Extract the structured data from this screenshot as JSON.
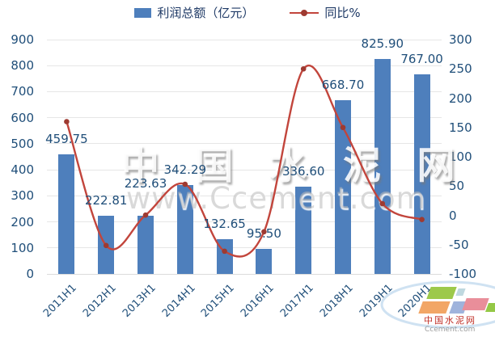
{
  "legend": {
    "bar_label": "利润总额（亿元）",
    "line_label": "同比%"
  },
  "watermark": {
    "line1": "中 国 水 泥 网",
    "line2": "www.Ccement.com"
  },
  "logo": {
    "name": "中国水泥网",
    "domain": "Ccement.com"
  },
  "colors": {
    "bar": "#4E7FBC",
    "line": "#C2453C",
    "marker": "#9E3A31",
    "axis_text": "#1F4E79",
    "gridline": "#E6E6E6",
    "watermark": "#CCCCCC",
    "logo_green": "#9DC94B",
    "logo_teal": "#BFD8DF",
    "logo_orange": "#F2A666",
    "logo_blue": "#9FB3DC",
    "logo_pink": "#E98E9A",
    "logo_green2": "#94C846",
    "logo_swoosh": "#CFE2F2",
    "logo_name_red": "#C03028"
  },
  "chart_data": {
    "type": "bar+line combo",
    "title": "",
    "categories": [
      "2011H1",
      "2012H1",
      "2013H1",
      "2014H1",
      "2015H1",
      "2016H1",
      "2017H1",
      "2018H1",
      "2019H1",
      "2020H1"
    ],
    "series": [
      {
        "name": "利润总额（亿元）",
        "type": "bar",
        "axis": "left",
        "values": [
          459.75,
          222.81,
          223.63,
          342.29,
          132.65,
          95.5,
          336.6,
          668.7,
          825.9,
          767.0
        ]
      },
      {
        "name": "同比%",
        "type": "line",
        "axis": "right",
        "values": [
          160,
          -51.5,
          0.4,
          53.1,
          -61.2,
          -28,
          250,
          150,
          20,
          -7.1
        ]
      }
    ],
    "bar_labels": [
      "459.75",
      "222.81",
      "223.63",
      "342.29",
      "132.65",
      "95.50",
      "336.60",
      "668.70",
      "825.90",
      "767.00"
    ],
    "left_axis": {
      "min": 0,
      "max": 900,
      "step": 100,
      "ticks": [
        "900",
        "800",
        "700",
        "600",
        "500",
        "400",
        "300",
        "200",
        "100",
        "0"
      ]
    },
    "right_axis": {
      "min": -100,
      "max": 300,
      "step": 50,
      "ticks": [
        "300",
        "250",
        "200",
        "150",
        "100",
        "50",
        "0",
        "-50",
        "-100"
      ]
    },
    "grid": true,
    "legend_position": "top"
  }
}
